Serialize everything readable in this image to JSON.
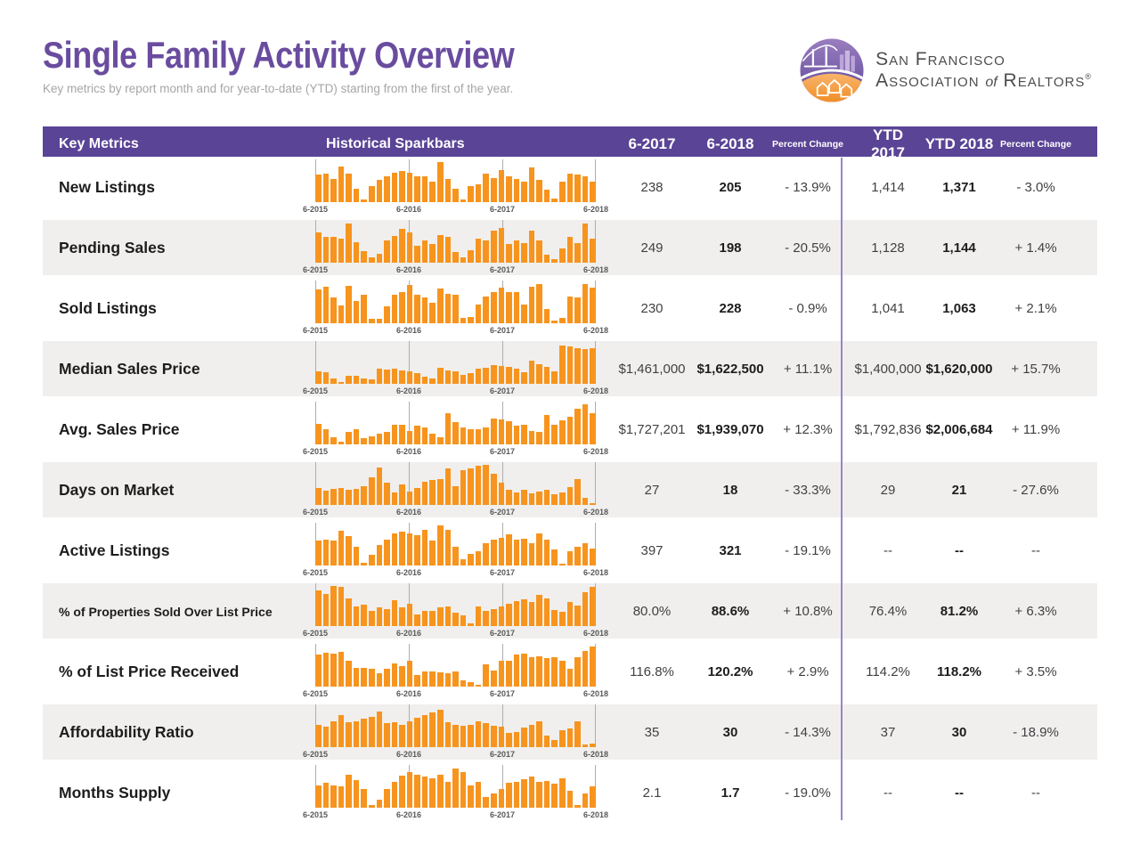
{
  "page": {
    "title": "Single Family Activity Overview",
    "subtitle": "Key metrics by report month and for year-to-date (YTD) starting from the first of the year."
  },
  "logo": {
    "line1": "San Francisco",
    "line2_pre": "Association ",
    "line2_of": "of",
    "line2_post": " Realtors",
    "registered": "®"
  },
  "table": {
    "headers": {
      "metric": "Key Metrics",
      "sparkbars": "Historical Sparkbars",
      "m1": "6-2017",
      "m2": "6-2018",
      "pct1": "Percent Change",
      "y1": "YTD 2017",
      "y2": "YTD 2018",
      "pct2": "Percent Change"
    },
    "axis_labels": [
      "6-2015",
      "6-2016",
      "6-2017",
      "6-2018"
    ],
    "rows": [
      {
        "metric": "New Listings",
        "m1": "238",
        "m2": "205",
        "pct1": "- 13.9%",
        "y1": "1,414",
        "y2": "1,371",
        "pct2": "- 3.0%",
        "spark": [
          68,
          70,
          56,
          88,
          70,
          32,
          6,
          40,
          54,
          62,
          72,
          76,
          72,
          62,
          62,
          50,
          98,
          56,
          32,
          6,
          40,
          44,
          70,
          58,
          78,
          64,
          56,
          50,
          84,
          54,
          30,
          8,
          50,
          70,
          68,
          64,
          50
        ]
      },
      {
        "metric": "Pending Sales",
        "m1": "249",
        "m2": "198",
        "pct1": "- 20.5%",
        "y1": "1,128",
        "y2": "1,144",
        "pct2": "+ 1.4%",
        "spark": [
          74,
          62,
          62,
          58,
          96,
          50,
          28,
          14,
          22,
          55,
          66,
          82,
          74,
          42,
          55,
          45,
          68,
          62,
          26,
          12,
          30,
          58,
          55,
          78,
          85,
          45,
          55,
          48,
          78,
          55,
          20,
          8,
          35,
          62,
          48,
          95,
          58
        ]
      },
      {
        "metric": "Sold Listings",
        "m1": "230",
        "m2": "228",
        "pct1": "- 0.9%",
        "y1": "1,041",
        "y2": "1,063",
        "pct2": "+ 2.1%",
        "spark": [
          82,
          90,
          64,
          44,
          92,
          54,
          70,
          10,
          10,
          42,
          70,
          76,
          94,
          70,
          64,
          50,
          85,
          72,
          70,
          12,
          15,
          45,
          65,
          75,
          88,
          75,
          75,
          45,
          90,
          96,
          35,
          6,
          12,
          65,
          62,
          95,
          88
        ]
      },
      {
        "metric": "Median Sales Price",
        "m1": "$1,461,000",
        "m2": "$1,622,500",
        "pct1": "+ 11.1%",
        "y1": "$1,400,000",
        "y2": "$1,620,000",
        "pct2": "+ 15.7%",
        "spark": [
          30,
          28,
          14,
          5,
          20,
          20,
          14,
          10,
          38,
          34,
          36,
          33,
          31,
          26,
          18,
          12,
          40,
          33,
          30,
          22,
          26,
          36,
          40,
          46,
          44,
          41,
          36,
          28,
          56,
          48,
          42,
          30,
          94,
          92,
          86,
          84,
          88
        ]
      },
      {
        "metric": "Avg. Sales Price",
        "m1": "$1,727,201",
        "m2": "$1,939,070",
        "pct1": "+ 12.3%",
        "y1": "$1,792,836",
        "y2": "$2,006,684",
        "pct2": "+ 11.9%",
        "spark": [
          50,
          36,
          18,
          6,
          30,
          38,
          16,
          20,
          25,
          30,
          48,
          48,
          32,
          45,
          42,
          25,
          18,
          75,
          55,
          42,
          38,
          36,
          42,
          62,
          60,
          56,
          45,
          48,
          32,
          30,
          72,
          48,
          58,
          68,
          88,
          98,
          75
        ]
      },
      {
        "metric": "Days on Market",
        "m1": "27",
        "m2": "18",
        "pct1": "- 33.3%",
        "y1": "29",
        "y2": "21",
        "pct2": "- 27.6%",
        "spark": [
          42,
          34,
          40,
          42,
          38,
          40,
          46,
          68,
          92,
          55,
          30,
          50,
          32,
          42,
          56,
          60,
          62,
          90,
          46,
          84,
          90,
          96,
          98,
          75,
          55,
          38,
          30,
          36,
          28,
          32,
          38,
          25,
          30,
          44,
          62,
          18,
          4
        ]
      },
      {
        "metric": "Active Listings",
        "m1": "397",
        "m2": "321",
        "pct1": "- 19.1%",
        "y1": "--",
        "y2": "--",
        "pct2": "--",
        "spark": [
          60,
          64,
          60,
          84,
          72,
          45,
          6,
          25,
          50,
          64,
          78,
          82,
          78,
          74,
          88,
          60,
          98,
          88,
          45,
          15,
          28,
          35,
          55,
          64,
          68,
          75,
          62,
          66,
          55,
          78,
          62,
          40,
          4,
          35,
          45,
          55,
          42
        ]
      },
      {
        "metric": "% of Properties Sold Over List Price",
        "m1": "80.0%",
        "m2": "88.6%",
        "pct1": "+ 10.8%",
        "y1": "76.4%",
        "y2": "81.2%",
        "pct2": "+ 6.3%",
        "spark": [
          88,
          78,
          98,
          95,
          68,
          48,
          52,
          38,
          45,
          42,
          62,
          45,
          55,
          28,
          38,
          38,
          45,
          48,
          32,
          25,
          6,
          48,
          38,
          42,
          48,
          55,
          60,
          65,
          58,
          75,
          68,
          40,
          35,
          58,
          50,
          82,
          95
        ]
      },
      {
        "metric": "% of List Price Received",
        "m1": "116.8%",
        "m2": "120.2%",
        "pct1": "+ 2.9%",
        "y1": "114.2%",
        "y2": "118.2%",
        "pct2": "+ 3.5%",
        "spark": [
          78,
          82,
          80,
          84,
          62,
          45,
          45,
          44,
          32,
          44,
          56,
          50,
          64,
          28,
          36,
          38,
          34,
          32,
          36,
          16,
          10,
          4,
          54,
          40,
          62,
          64,
          78,
          80,
          72,
          74,
          70,
          72,
          62,
          44,
          72,
          88,
          98
        ]
      },
      {
        "metric": "Affordability Ratio",
        "m1": "35",
        "m2": "30",
        "pct1": "- 14.3%",
        "y1": "37",
        "y2": "30",
        "pct2": "- 18.9%",
        "spark": [
          55,
          50,
          62,
          78,
          60,
          62,
          70,
          74,
          88,
          58,
          60,
          55,
          62,
          72,
          78,
          85,
          92,
          60,
          55,
          52,
          55,
          62,
          58,
          52,
          50,
          35,
          38,
          48,
          55,
          62,
          28,
          18,
          42,
          45,
          62,
          6,
          8
        ]
      },
      {
        "metric": "Months Supply",
        "m1": "2.1",
        "m2": "1.7",
        "pct1": "- 19.0%",
        "y1": "--",
        "y2": "--",
        "pct2": "--",
        "spark": [
          55,
          60,
          55,
          52,
          80,
          68,
          45,
          6,
          20,
          45,
          62,
          78,
          88,
          80,
          75,
          72,
          80,
          62,
          95,
          88,
          55,
          62,
          25,
          35,
          45,
          60,
          64,
          70,
          75,
          64,
          66,
          58,
          72,
          42,
          6,
          34,
          52
        ]
      }
    ]
  },
  "colors": {
    "header_purple": "#5A4496",
    "title_purple": "#6A4C9F",
    "bar_orange": "#F7941E",
    "row_stripe": "#F0EFED",
    "ytd_divider": "#9B83CB"
  }
}
